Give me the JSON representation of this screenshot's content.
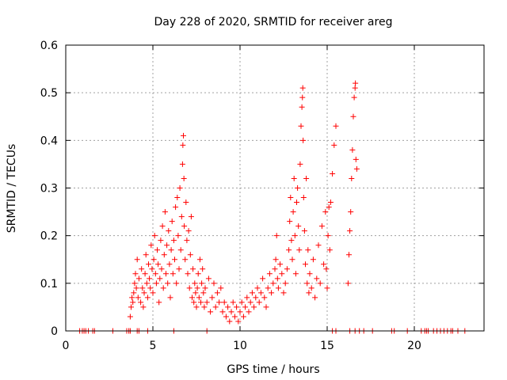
{
  "chart_data": {
    "type": "scatter",
    "title": "Day 228 of 2020, SRMTID for receiver areg",
    "xlabel": "GPS time / hours",
    "ylabel": "SRMTID / TECUs",
    "xlim": [
      0,
      24
    ],
    "ylim": [
      0,
      0.6
    ],
    "xticks": [
      0,
      5,
      10,
      15,
      20
    ],
    "xtick_labels": [
      "0",
      "5",
      "10",
      "15",
      "20"
    ],
    "yticks": [
      0,
      0.1,
      0.2,
      0.3,
      0.4,
      0.5,
      0.6
    ],
    "ytick_labels": [
      "0",
      "0.1",
      "0.2",
      "0.3",
      "0.4",
      "0.5",
      "0.6"
    ],
    "grid": true,
    "marker": "+",
    "color": "#ff0000",
    "series": [
      {
        "name": "SRMTID",
        "points": [
          [
            0.8,
            0
          ],
          [
            0.95,
            0
          ],
          [
            1.05,
            0
          ],
          [
            1.15,
            0
          ],
          [
            1.3,
            0
          ],
          [
            1.55,
            0
          ],
          [
            1.65,
            0
          ],
          [
            2.7,
            0
          ],
          [
            3.5,
            0
          ],
          [
            3.62,
            0
          ],
          [
            3.7,
            0
          ],
          [
            4.1,
            0
          ],
          [
            4.2,
            0
          ],
          [
            4.7,
            0
          ],
          [
            6.2,
            0
          ],
          [
            8.1,
            0
          ],
          [
            15.3,
            0
          ],
          [
            15.5,
            0
          ],
          [
            16.3,
            0
          ],
          [
            16.6,
            0
          ],
          [
            16.85,
            0
          ],
          [
            17.1,
            0
          ],
          [
            17.6,
            0
          ],
          [
            18.7,
            0
          ],
          [
            18.85,
            0
          ],
          [
            19.6,
            0
          ],
          [
            20.4,
            0
          ],
          [
            20.6,
            0
          ],
          [
            20.7,
            0
          ],
          [
            20.8,
            0
          ],
          [
            21.1,
            0
          ],
          [
            21.3,
            0
          ],
          [
            21.5,
            0
          ],
          [
            21.7,
            0
          ],
          [
            21.9,
            0
          ],
          [
            22.1,
            0
          ],
          [
            22.2,
            0
          ],
          [
            22.5,
            0
          ],
          [
            22.9,
            0
          ],
          [
            3.7,
            0.03
          ],
          [
            3.75,
            0.05
          ],
          [
            3.8,
            0.07
          ],
          [
            3.85,
            0.06
          ],
          [
            3.9,
            0.08
          ],
          [
            3.95,
            0.1
          ],
          [
            4.0,
            0.12
          ],
          [
            4.05,
            0.09
          ],
          [
            4.1,
            0.15
          ],
          [
            4.15,
            0.07
          ],
          [
            4.2,
            0.11
          ],
          [
            4.3,
            0.06
          ],
          [
            4.35,
            0.13
          ],
          [
            4.4,
            0.09
          ],
          [
            4.45,
            0.05
          ],
          [
            4.5,
            0.08
          ],
          [
            4.55,
            0.12
          ],
          [
            4.6,
            0.16
          ],
          [
            4.65,
            0.1
          ],
          [
            4.7,
            0.07
          ],
          [
            4.75,
            0.14
          ],
          [
            4.8,
            0.11
          ],
          [
            4.85,
            0.09
          ],
          [
            4.9,
            0.18
          ],
          [
            4.95,
            0.13
          ],
          [
            5.0,
            0.08
          ],
          [
            5.05,
            0.15
          ],
          [
            5.1,
            0.2
          ],
          [
            5.15,
            0.12
          ],
          [
            5.2,
            0.1
          ],
          [
            5.25,
            0.17
          ],
          [
            5.3,
            0.14
          ],
          [
            5.35,
            0.06
          ],
          [
            5.4,
            0.11
          ],
          [
            5.45,
            0.19
          ],
          [
            5.5,
            0.13
          ],
          [
            5.55,
            0.22
          ],
          [
            5.6,
            0.09
          ],
          [
            5.65,
            0.16
          ],
          [
            5.7,
            0.25
          ],
          [
            5.75,
            0.12
          ],
          [
            5.8,
            0.18
          ],
          [
            5.85,
            0.1
          ],
          [
            5.9,
            0.21
          ],
          [
            5.95,
            0.14
          ],
          [
            6.0,
            0.07
          ],
          [
            6.05,
            0.17
          ],
          [
            6.1,
            0.23
          ],
          [
            6.15,
            0.12
          ],
          [
            6.2,
            0.19
          ],
          [
            6.25,
            0.15
          ],
          [
            6.3,
            0.26
          ],
          [
            6.35,
            0.1
          ],
          [
            6.4,
            0.28
          ],
          [
            6.45,
            0.2
          ],
          [
            6.5,
            0.13
          ],
          [
            6.55,
            0.3
          ],
          [
            6.6,
            0.17
          ],
          [
            6.65,
            0.24
          ],
          [
            6.7,
            0.35
          ],
          [
            6.72,
            0.39
          ],
          [
            6.75,
            0.41
          ],
          [
            6.78,
            0.32
          ],
          [
            6.8,
            0.22
          ],
          [
            6.85,
            0.15
          ],
          [
            6.9,
            0.27
          ],
          [
            6.95,
            0.19
          ],
          [
            7.0,
            0.12
          ],
          [
            7.05,
            0.21
          ],
          [
            7.1,
            0.09
          ],
          [
            7.15,
            0.16
          ],
          [
            7.2,
            0.24
          ],
          [
            7.25,
            0.07
          ],
          [
            7.3,
            0.13
          ],
          [
            7.35,
            0.06
          ],
          [
            7.4,
            0.1
          ],
          [
            7.45,
            0.08
          ],
          [
            7.5,
            0.05
          ],
          [
            7.55,
            0.09
          ],
          [
            7.6,
            0.12
          ],
          [
            7.65,
            0.07
          ],
          [
            7.7,
            0.15
          ],
          [
            7.75,
            0.06
          ],
          [
            7.8,
            0.1
          ],
          [
            7.85,
            0.13
          ],
          [
            7.9,
            0.08
          ],
          [
            7.95,
            0.05
          ],
          [
            8.0,
            0.09
          ],
          [
            8.1,
            0.06
          ],
          [
            8.2,
            0.11
          ],
          [
            8.3,
            0.04
          ],
          [
            8.4,
            0.07
          ],
          [
            8.5,
            0.1
          ],
          [
            8.6,
            0.05
          ],
          [
            8.7,
            0.08
          ],
          [
            8.8,
            0.06
          ],
          [
            8.9,
            0.09
          ],
          [
            9.0,
            0.04
          ],
          [
            9.1,
            0.06
          ],
          [
            9.2,
            0.03
          ],
          [
            9.3,
            0.05
          ],
          [
            9.4,
            0.02
          ],
          [
            9.5,
            0.04
          ],
          [
            9.6,
            0.06
          ],
          [
            9.7,
            0.03
          ],
          [
            9.8,
            0.05
          ],
          [
            9.9,
            0.02
          ],
          [
            10.0,
            0.04
          ],
          [
            10.1,
            0.06
          ],
          [
            10.2,
            0.03
          ],
          [
            10.3,
            0.05
          ],
          [
            10.4,
            0.07
          ],
          [
            10.5,
            0.04
          ],
          [
            10.6,
            0.06
          ],
          [
            10.7,
            0.08
          ],
          [
            10.8,
            0.05
          ],
          [
            10.9,
            0.07
          ],
          [
            11.0,
            0.09
          ],
          [
            11.1,
            0.06
          ],
          [
            11.2,
            0.08
          ],
          [
            11.3,
            0.11
          ],
          [
            11.4,
            0.07
          ],
          [
            11.5,
            0.05
          ],
          [
            11.6,
            0.09
          ],
          [
            11.7,
            0.12
          ],
          [
            11.8,
            0.08
          ],
          [
            11.9,
            0.1
          ],
          [
            12.0,
            0.13
          ],
          [
            12.05,
            0.15
          ],
          [
            12.1,
            0.2
          ],
          [
            12.15,
            0.11
          ],
          [
            12.2,
            0.09
          ],
          [
            12.3,
            0.14
          ],
          [
            12.4,
            0.12
          ],
          [
            12.5,
            0.08
          ],
          [
            12.6,
            0.1
          ],
          [
            12.7,
            0.13
          ],
          [
            12.8,
            0.17
          ],
          [
            12.85,
            0.23
          ],
          [
            12.9,
            0.28
          ],
          [
            12.95,
            0.19
          ],
          [
            13.0,
            0.15
          ],
          [
            13.05,
            0.25
          ],
          [
            13.1,
            0.32
          ],
          [
            13.15,
            0.2
          ],
          [
            13.2,
            0.12
          ],
          [
            13.25,
            0.27
          ],
          [
            13.3,
            0.3
          ],
          [
            13.35,
            0.22
          ],
          [
            13.4,
            0.17
          ],
          [
            13.45,
            0.35
          ],
          [
            13.5,
            0.43
          ],
          [
            13.55,
            0.47
          ],
          [
            13.58,
            0.49
          ],
          [
            13.6,
            0.51
          ],
          [
            13.62,
            0.4
          ],
          [
            13.65,
            0.28
          ],
          [
            13.7,
            0.21
          ],
          [
            13.75,
            0.14
          ],
          [
            13.8,
            0.32
          ],
          [
            13.85,
            0.1
          ],
          [
            13.9,
            0.17
          ],
          [
            13.95,
            0.08
          ],
          [
            14.0,
            0.12
          ],
          [
            14.1,
            0.09
          ],
          [
            14.2,
            0.15
          ],
          [
            14.3,
            0.07
          ],
          [
            14.4,
            0.11
          ],
          [
            14.5,
            0.18
          ],
          [
            14.6,
            0.1
          ],
          [
            14.7,
            0.22
          ],
          [
            14.8,
            0.14
          ],
          [
            14.9,
            0.25
          ],
          [
            14.95,
            0.13
          ],
          [
            15.0,
            0.09
          ],
          [
            15.05,
            0.2
          ],
          [
            15.1,
            0.26
          ],
          [
            15.15,
            0.17
          ],
          [
            15.2,
            0.27
          ],
          [
            15.3,
            0.33
          ],
          [
            15.4,
            0.39
          ],
          [
            15.5,
            0.43
          ],
          [
            16.2,
            0.1
          ],
          [
            16.25,
            0.16
          ],
          [
            16.3,
            0.21
          ],
          [
            16.35,
            0.25
          ],
          [
            16.4,
            0.32
          ],
          [
            16.45,
            0.38
          ],
          [
            16.5,
            0.45
          ],
          [
            16.55,
            0.49
          ],
          [
            16.6,
            0.51
          ],
          [
            16.62,
            0.52
          ],
          [
            16.65,
            0.36
          ],
          [
            16.7,
            0.34
          ]
        ]
      }
    ]
  }
}
